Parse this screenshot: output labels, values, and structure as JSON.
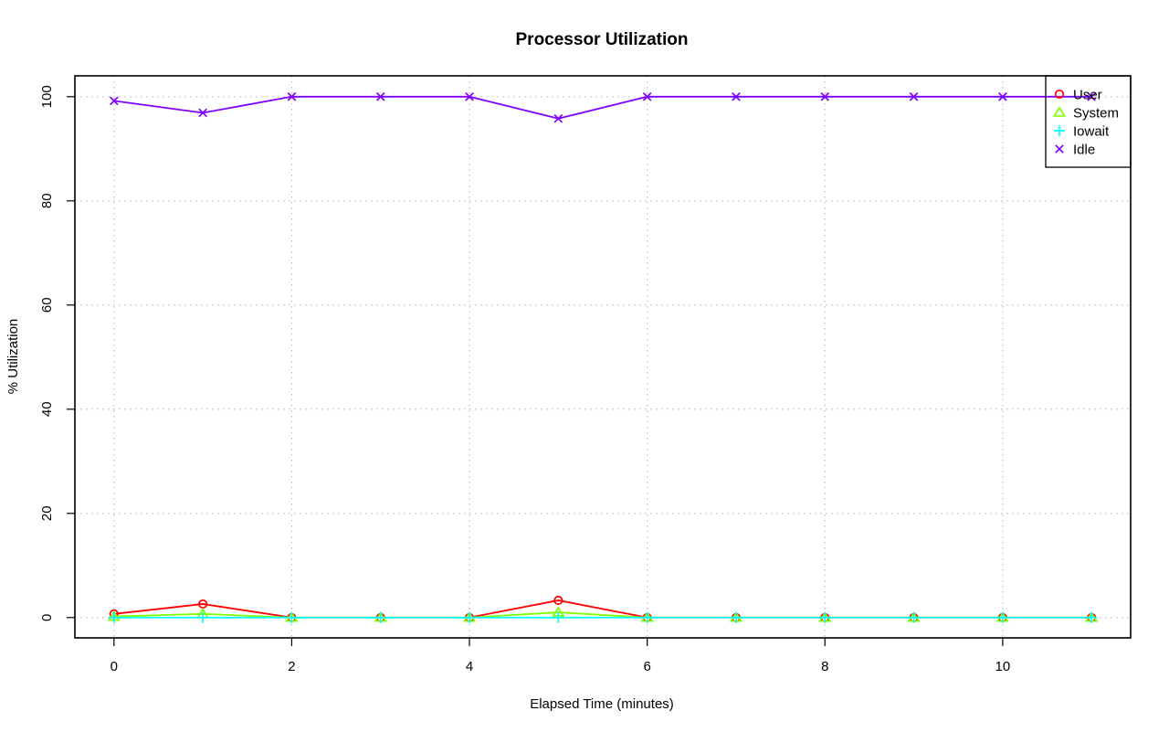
{
  "chart_data": {
    "type": "line",
    "title": "Processor Utilization",
    "xlabel": "Elapsed Time (minutes)",
    "ylabel": "% Utilization",
    "x": [
      0,
      1,
      2,
      3,
      4,
      5,
      6,
      7,
      8,
      9,
      10,
      11
    ],
    "xlim": [
      -0.44,
      11.44
    ],
    "ylim": [
      -3.9,
      104
    ],
    "x_ticks": [
      0,
      2,
      4,
      6,
      8,
      10
    ],
    "y_ticks": [
      0,
      20,
      40,
      60,
      80,
      100
    ],
    "grid": true,
    "legend_position": "top-right",
    "series": [
      {
        "name": "User",
        "color": "#ff0000",
        "marker": "circle",
        "values": [
          0.7,
          2.6,
          0,
          0,
          0,
          3.3,
          0,
          0,
          0,
          0,
          0,
          0
        ]
      },
      {
        "name": "System",
        "color": "#80ff00",
        "marker": "triangle",
        "values": [
          0.2,
          0.7,
          0,
          0,
          0,
          1.0,
          0,
          0,
          0,
          0,
          0,
          0
        ]
      },
      {
        "name": "Iowait",
        "color": "#00ffff",
        "marker": "plus",
        "values": [
          0,
          0,
          0,
          0,
          0,
          0,
          0,
          0,
          0,
          0,
          0,
          0
        ]
      },
      {
        "name": "Idle",
        "color": "#8000ff",
        "marker": "cross",
        "values": [
          99.2,
          96.9,
          100,
          100,
          100,
          95.8,
          100,
          100,
          100,
          100,
          100,
          100
        ]
      }
    ]
  }
}
